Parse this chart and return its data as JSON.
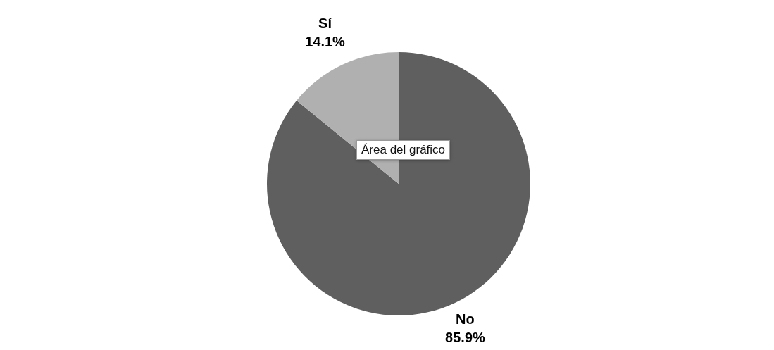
{
  "chart_data": {
    "type": "pie",
    "categories": [
      "No",
      "Sí"
    ],
    "values": [
      85.9,
      14.1
    ],
    "colors": [
      "#5f5f5f",
      "#b0b0b0"
    ],
    "value_labels": [
      "85.9%",
      "14.1%"
    ],
    "annotations": [
      "Área del gráfico"
    ]
  }
}
